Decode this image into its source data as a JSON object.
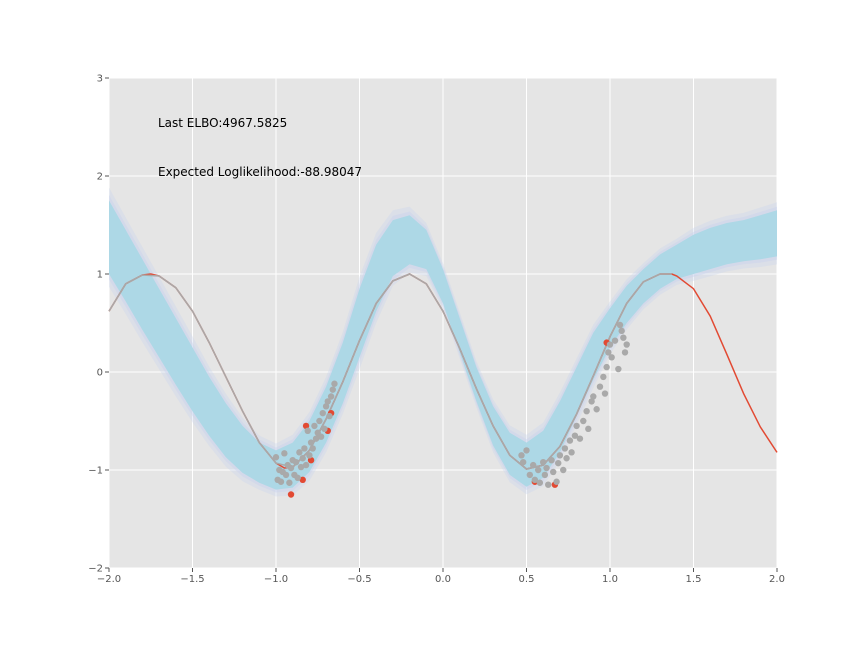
{
  "chart_data": {
    "type": "line",
    "title": "",
    "xlabel": "",
    "ylabel": "",
    "xlim": [
      -2.0,
      2.0
    ],
    "ylim": [
      -2,
      3
    ],
    "x_ticks": [
      -2.0,
      -1.5,
      -1.0,
      -0.5,
      0.0,
      0.5,
      1.0,
      1.5,
      2.0
    ],
    "x_tick_labels": [
      "−2.0",
      "−1.5",
      "−1.0",
      "−0.5",
      "0.0",
      "0.5",
      "1.0",
      "1.5",
      "2.0"
    ],
    "y_ticks": [
      -2,
      -1,
      0,
      1,
      2,
      3
    ],
    "y_tick_labels": [
      "−2",
      "−1",
      "0",
      "1",
      "2",
      "3"
    ],
    "grid": true,
    "annotations": [
      {
        "text": "Last ELBO:4967.5825"
      },
      {
        "text": "Expected Loglikelihood:-88.98047"
      }
    ],
    "colors": {
      "background": "#e5e5e5",
      "grid": "#ffffff",
      "true_function": "#e24a33",
      "posterior_band": "#add8e6",
      "posterior_outer": "#c9d3ee",
      "training_points": "#a9a9a9",
      "red_points": "#e24a33"
    },
    "series": [
      {
        "kind": "true_function",
        "x": [
          -2.0,
          -1.9,
          -1.8,
          -1.75,
          -1.7,
          -1.6,
          -1.5,
          -1.4,
          -1.3,
          -1.2,
          -1.1,
          -1.0,
          -0.95,
          -0.9,
          -0.8,
          -0.7,
          -0.6,
          -0.5,
          -0.4,
          -0.3,
          -0.2,
          -0.1,
          0.0,
          0.1,
          0.2,
          0.3,
          0.4,
          0.5,
          0.6,
          0.7,
          0.8,
          0.9,
          1.0,
          1.1,
          1.2,
          1.3,
          1.37,
          1.4,
          1.5,
          1.6,
          1.7,
          1.8,
          1.9,
          2.0
        ],
        "y": [
          0.62,
          0.9,
          0.99,
          1.0,
          0.98,
          0.86,
          0.62,
          0.3,
          -0.05,
          -0.4,
          -0.72,
          -0.93,
          -0.98,
          -0.97,
          -0.8,
          -0.48,
          -0.1,
          0.32,
          0.7,
          0.93,
          1.0,
          0.9,
          0.62,
          0.24,
          -0.17,
          -0.55,
          -0.85,
          -0.99,
          -0.95,
          -0.76,
          -0.43,
          -0.04,
          0.36,
          0.7,
          0.92,
          1.0,
          1.0,
          0.98,
          0.85,
          0.57,
          0.18,
          -0.22,
          -0.56,
          -0.82
        ]
      },
      {
        "kind": "posterior_band",
        "x": [
          -2.0,
          -1.9,
          -1.8,
          -1.7,
          -1.6,
          -1.5,
          -1.4,
          -1.3,
          -1.2,
          -1.1,
          -1.0,
          -0.9,
          -0.8,
          -0.7,
          -0.6,
          -0.5,
          -0.4,
          -0.3,
          -0.2,
          -0.1,
          0.0,
          0.1,
          0.2,
          0.3,
          0.4,
          0.5,
          0.6,
          0.7,
          0.8,
          0.9,
          1.0,
          1.1,
          1.2,
          1.3,
          1.4,
          1.5,
          1.6,
          1.7,
          1.8,
          1.9,
          2.0
        ],
        "upper": [
          1.75,
          1.45,
          1.15,
          0.85,
          0.55,
          0.25,
          -0.05,
          -0.32,
          -0.55,
          -0.72,
          -0.8,
          -0.72,
          -0.5,
          -0.15,
          0.3,
          0.85,
          1.3,
          1.55,
          1.6,
          1.45,
          1.05,
          0.55,
          0.05,
          -0.35,
          -0.62,
          -0.72,
          -0.6,
          -0.3,
          0.05,
          0.4,
          0.65,
          0.88,
          1.05,
          1.2,
          1.3,
          1.4,
          1.47,
          1.52,
          1.55,
          1.6,
          1.65
        ],
        "lower": [
          1.0,
          0.72,
          0.43,
          0.15,
          -0.13,
          -0.4,
          -0.65,
          -0.87,
          -1.03,
          -1.13,
          -1.2,
          -1.18,
          -1.02,
          -0.72,
          -0.32,
          0.15,
          0.62,
          0.98,
          1.1,
          1.05,
          0.7,
          0.2,
          -0.3,
          -0.75,
          -1.05,
          -1.17,
          -1.08,
          -0.82,
          -0.45,
          -0.08,
          0.25,
          0.5,
          0.7,
          0.85,
          0.95,
          1.0,
          1.05,
          1.1,
          1.13,
          1.15,
          1.18
        ]
      },
      {
        "kind": "posterior_mean",
        "x": [
          -2.0,
          -1.9,
          -1.8,
          -1.7,
          -1.6,
          -1.5,
          -1.4,
          -1.3,
          -1.2,
          -1.1,
          -1.0,
          -0.9,
          -0.8,
          -0.7,
          -0.6,
          -0.5,
          -0.4,
          -0.3,
          -0.2,
          -0.1,
          0.0,
          0.1,
          0.2,
          0.3,
          0.4,
          0.5,
          0.6,
          0.7,
          0.8,
          0.9,
          1.0,
          1.1,
          1.2,
          1.3,
          1.37
        ],
        "y": [
          0.62,
          0.9,
          0.99,
          0.98,
          0.86,
          0.62,
          0.3,
          -0.05,
          -0.4,
          -0.72,
          -0.93,
          -0.97,
          -0.8,
          -0.48,
          -0.1,
          0.32,
          0.7,
          0.93,
          1.0,
          0.9,
          0.62,
          0.24,
          -0.17,
          -0.55,
          -0.85,
          -0.99,
          -0.95,
          -0.76,
          -0.43,
          -0.04,
          0.36,
          0.7,
          0.92,
          1.0,
          1.0
        ]
      }
    ],
    "points": [
      {
        "x": -1.0,
        "y": -0.87
      },
      {
        "x": -0.99,
        "y": -1.1
      },
      {
        "x": -0.98,
        "y": -1.0
      },
      {
        "x": -0.97,
        "y": -1.12
      },
      {
        "x": -0.96,
        "y": -1.02
      },
      {
        "x": -0.95,
        "y": -0.83
      },
      {
        "x": -0.94,
        "y": -1.05
      },
      {
        "x": -0.93,
        "y": -0.95
      },
      {
        "x": -0.92,
        "y": -1.13
      },
      {
        "x": -0.91,
        "y": -0.98
      },
      {
        "x": -0.9,
        "y": -0.9
      },
      {
        "x": -0.89,
        "y": -1.05
      },
      {
        "x": -0.88,
        "y": -0.92
      },
      {
        "x": -0.87,
        "y": -1.08
      },
      {
        "x": -0.86,
        "y": -0.82
      },
      {
        "x": -0.85,
        "y": -0.97
      },
      {
        "x": -0.84,
        "y": -0.88
      },
      {
        "x": -0.83,
        "y": -0.78
      },
      {
        "x": -0.82,
        "y": -0.95
      },
      {
        "x": -0.81,
        "y": -0.6
      },
      {
        "x": -0.8,
        "y": -0.85
      },
      {
        "x": -0.79,
        "y": -0.72
      },
      {
        "x": -0.78,
        "y": -0.78
      },
      {
        "x": -0.77,
        "y": -0.55
      },
      {
        "x": -0.76,
        "y": -0.68
      },
      {
        "x": -0.75,
        "y": -0.62
      },
      {
        "x": -0.74,
        "y": -0.5
      },
      {
        "x": -0.73,
        "y": -0.66
      },
      {
        "x": -0.72,
        "y": -0.42
      },
      {
        "x": -0.71,
        "y": -0.58
      },
      {
        "x": -0.7,
        "y": -0.35
      },
      {
        "x": -0.69,
        "y": -0.3
      },
      {
        "x": -0.68,
        "y": -0.45
      },
      {
        "x": -0.67,
        "y": -0.25
      },
      {
        "x": -0.66,
        "y": -0.18
      },
      {
        "x": -0.65,
        "y": -0.12
      },
      {
        "x": 0.47,
        "y": -0.85
      },
      {
        "x": 0.48,
        "y": -0.92
      },
      {
        "x": 0.5,
        "y": -0.8
      },
      {
        "x": 0.52,
        "y": -1.05
      },
      {
        "x": 0.54,
        "y": -0.95
      },
      {
        "x": 0.55,
        "y": -1.1
      },
      {
        "x": 0.57,
        "y": -1.0
      },
      {
        "x": 0.58,
        "y": -1.13
      },
      {
        "x": 0.6,
        "y": -0.92
      },
      {
        "x": 0.61,
        "y": -1.05
      },
      {
        "x": 0.62,
        "y": -0.98
      },
      {
        "x": 0.63,
        "y": -1.15
      },
      {
        "x": 0.65,
        "y": -0.9
      },
      {
        "x": 0.66,
        "y": -1.02
      },
      {
        "x": 0.68,
        "y": -1.12
      },
      {
        "x": 0.69,
        "y": -0.93
      },
      {
        "x": 0.7,
        "y": -0.85
      },
      {
        "x": 0.72,
        "y": -1.0
      },
      {
        "x": 0.73,
        "y": -0.78
      },
      {
        "x": 0.74,
        "y": -0.88
      },
      {
        "x": 0.76,
        "y": -0.7
      },
      {
        "x": 0.77,
        "y": -0.82
      },
      {
        "x": 0.79,
        "y": -0.65
      },
      {
        "x": 0.8,
        "y": -0.55
      },
      {
        "x": 0.82,
        "y": -0.68
      },
      {
        "x": 0.84,
        "y": -0.5
      },
      {
        "x": 0.86,
        "y": -0.4
      },
      {
        "x": 0.87,
        "y": -0.58
      },
      {
        "x": 0.89,
        "y": -0.3
      },
      {
        "x": 0.9,
        "y": -0.25
      },
      {
        "x": 0.92,
        "y": -0.38
      },
      {
        "x": 0.94,
        "y": -0.15
      },
      {
        "x": 0.96,
        "y": -0.05
      },
      {
        "x": 0.97,
        "y": -0.22
      },
      {
        "x": 0.98,
        "y": 0.05
      },
      {
        "x": 0.99,
        "y": 0.2
      },
      {
        "x": 1.0,
        "y": 0.28
      },
      {
        "x": 1.01,
        "y": 0.15
      },
      {
        "x": 1.03,
        "y": 0.32
      },
      {
        "x": 1.05,
        "y": 0.03
      },
      {
        "x": 1.06,
        "y": 0.48
      },
      {
        "x": 1.07,
        "y": 0.42
      },
      {
        "x": 1.08,
        "y": 0.35
      },
      {
        "x": 1.09,
        "y": 0.2
      },
      {
        "x": 1.1,
        "y": 0.28
      }
    ],
    "red_points": [
      {
        "x": -0.91,
        "y": -1.25
      },
      {
        "x": -0.84,
        "y": -1.1
      },
      {
        "x": -0.79,
        "y": -0.9
      },
      {
        "x": -0.69,
        "y": -0.6
      },
      {
        "x": -0.82,
        "y": -0.55
      },
      {
        "x": -0.67,
        "y": -0.42
      },
      {
        "x": 0.98,
        "y": 0.3
      },
      {
        "x": 0.55,
        "y": -1.12
      },
      {
        "x": 0.67,
        "y": -1.15
      }
    ]
  }
}
